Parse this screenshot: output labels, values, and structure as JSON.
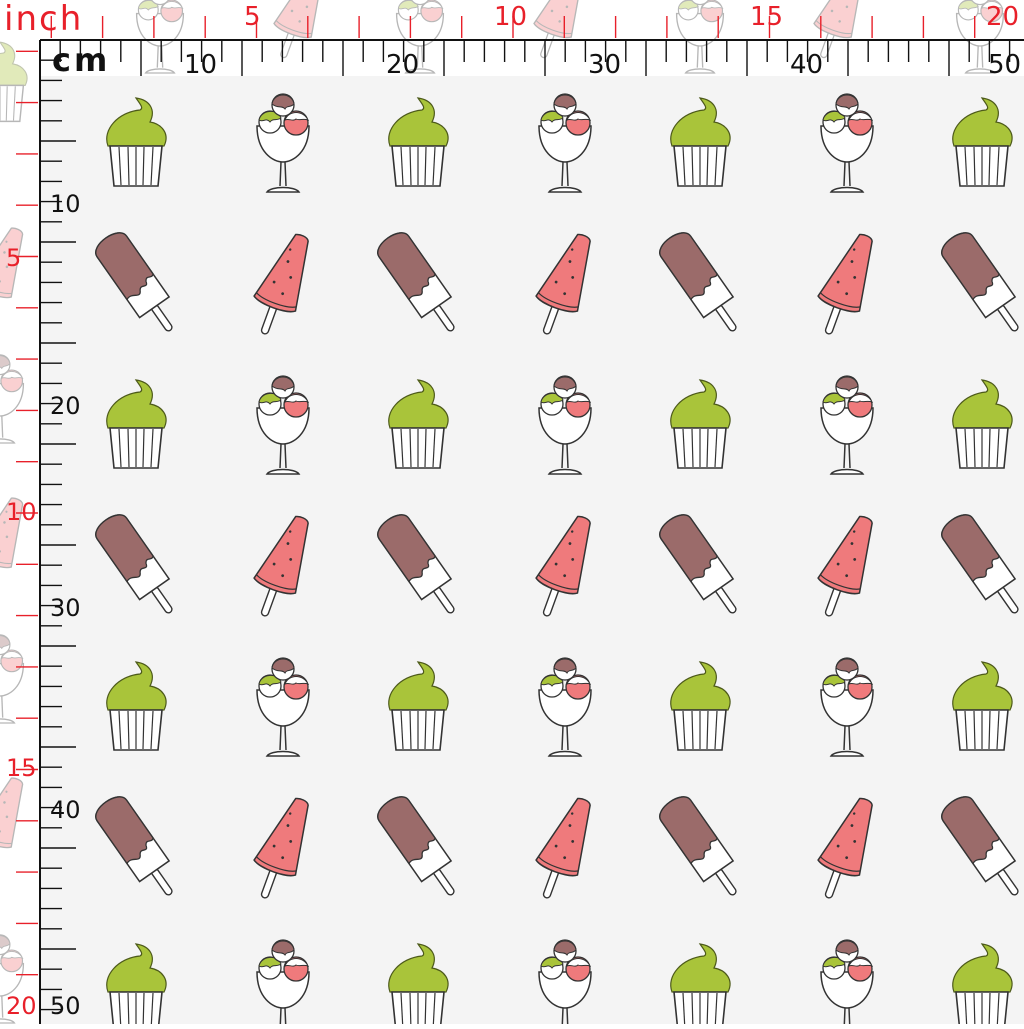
{
  "ruler": {
    "inch_unit": "inch",
    "cm_unit": "cm",
    "inch_top_ticks": [
      "5",
      "10",
      "15",
      "20"
    ],
    "cm_top_ticks": [
      "10",
      "20",
      "30",
      "40",
      "50"
    ],
    "inch_left_ticks": [
      "5",
      "10",
      "15",
      "20"
    ],
    "cm_left_ticks": [
      "10",
      "20",
      "30",
      "40",
      "50"
    ],
    "inch_color": "#e8202a",
    "cm_color": "#111111"
  },
  "pattern": {
    "motifs": [
      "cupcake-icon",
      "ice-cream-sundae-icon",
      "chocolate-popsicle-icon",
      "watermelon-popsicle-icon"
    ],
    "colors": {
      "cupcake_frosting": "#a9c43a",
      "chocolate": "#9b6b6a",
      "watermelon": "#ef7a7c",
      "outline": "#3a3a3a",
      "fabric": "#f4f4f4"
    }
  }
}
